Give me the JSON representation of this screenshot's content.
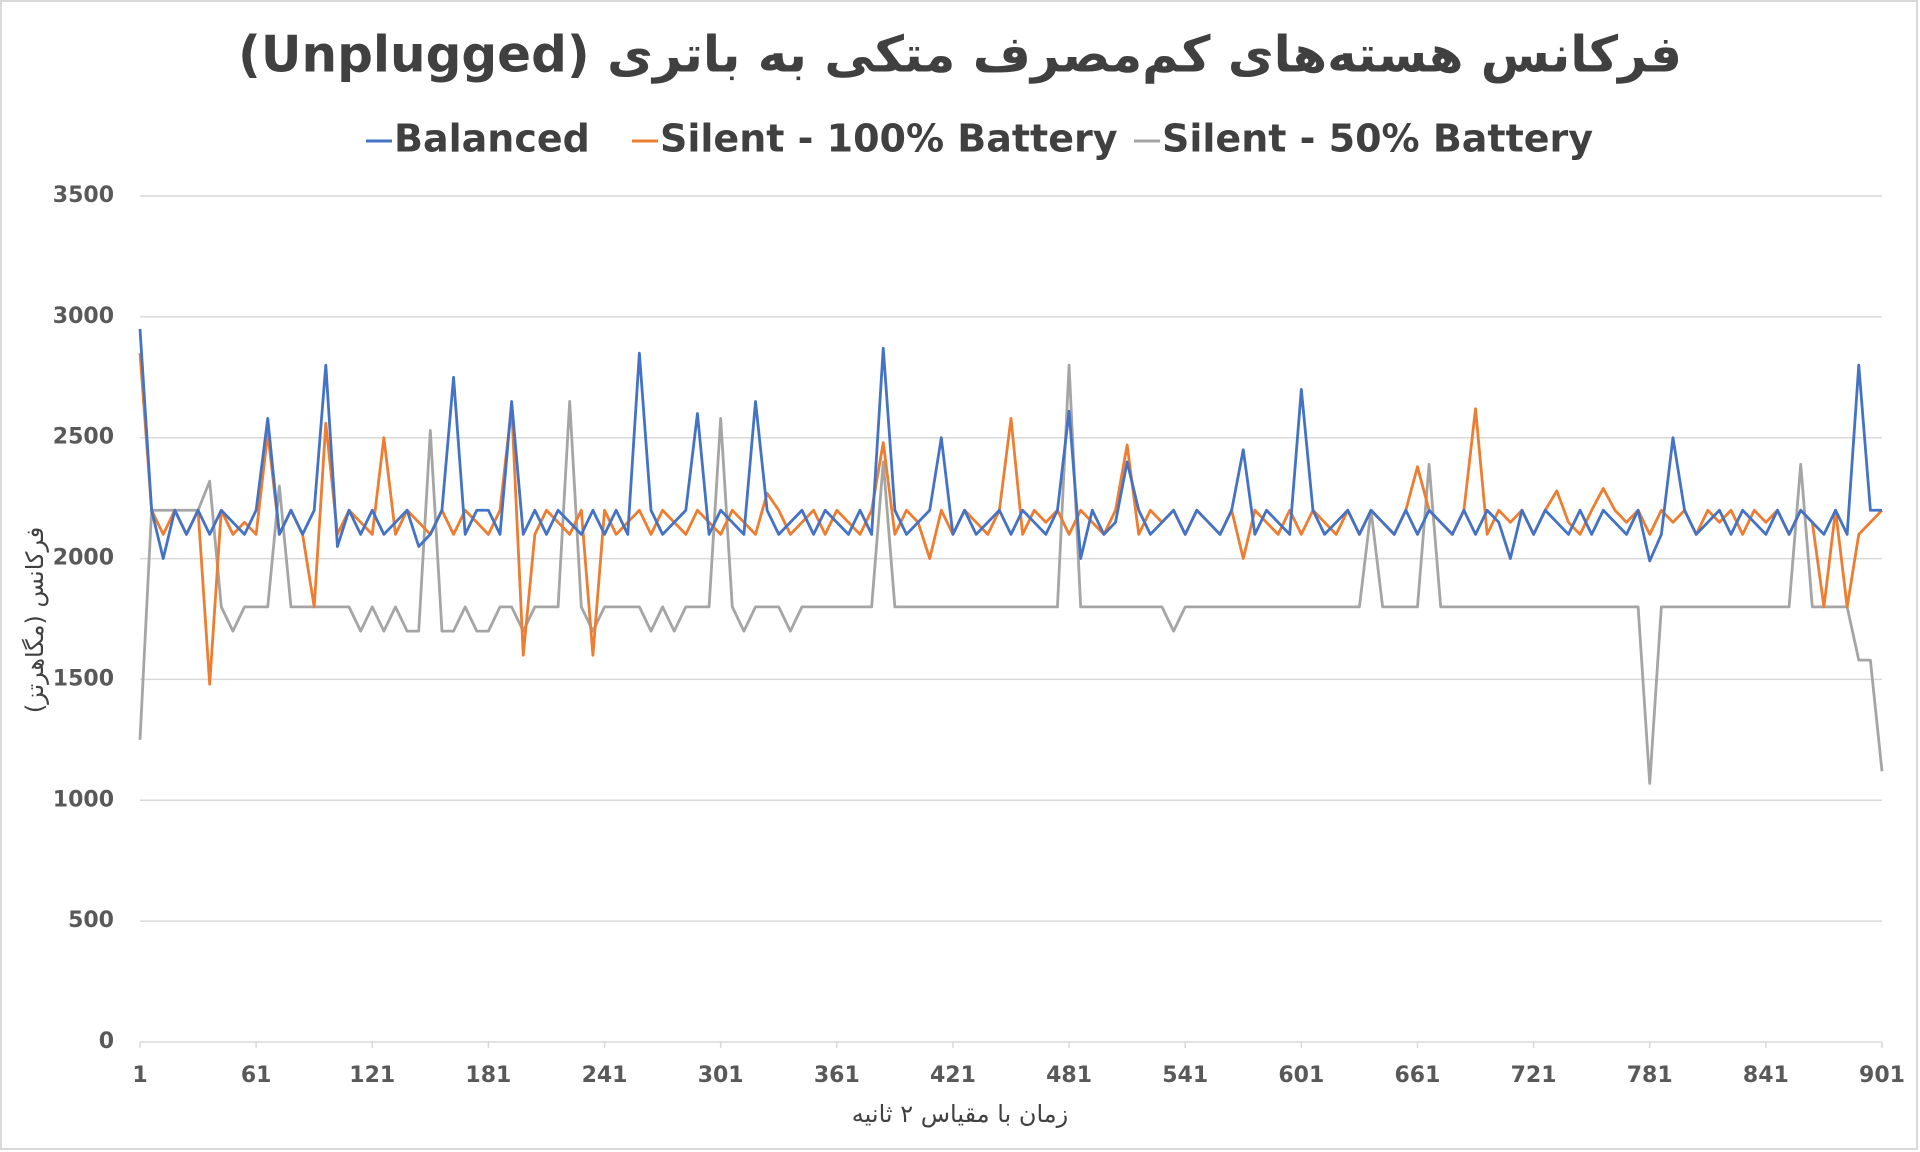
{
  "chart_data": {
    "type": "line",
    "title": "فرکانس هسته‌های کم‌مصرف متکی به باتری (Unplugged)",
    "x_label": "زمان با مقیاس ۲ ثانیه",
    "y_label": "فرکانس (مگاهرتز)",
    "x": [
      1,
      7,
      13,
      19,
      25,
      31,
      37,
      43,
      49,
      55,
      61,
      67,
      73,
      79,
      85,
      91,
      97,
      103,
      109,
      115,
      121,
      127,
      133,
      139,
      145,
      151,
      157,
      163,
      169,
      175,
      181,
      187,
      193,
      199,
      205,
      211,
      217,
      223,
      229,
      235,
      241,
      247,
      253,
      259,
      265,
      271,
      277,
      283,
      289,
      295,
      301,
      307,
      313,
      319,
      325,
      331,
      337,
      343,
      349,
      355,
      361,
      367,
      373,
      379,
      385,
      391,
      397,
      403,
      409,
      415,
      421,
      427,
      433,
      439,
      445,
      451,
      457,
      463,
      469,
      475,
      481,
      487,
      493,
      499,
      505,
      511,
      517,
      523,
      529,
      535,
      541,
      547,
      553,
      559,
      565,
      571,
      577,
      583,
      589,
      595,
      601,
      607,
      613,
      619,
      625,
      631,
      637,
      643,
      649,
      655,
      661,
      667,
      673,
      679,
      685,
      691,
      697,
      703,
      709,
      715,
      721,
      727,
      733,
      739,
      745,
      751,
      757,
      763,
      769,
      775,
      781,
      787,
      793,
      799,
      805,
      811,
      817,
      823,
      829,
      835,
      841,
      847,
      853,
      859,
      865,
      871,
      877,
      883,
      889,
      895,
      901
    ],
    "series": [
      {
        "name": "Balanced",
        "color": "#4472c4",
        "values": [
          2950,
          2200,
          2000,
          2200,
          2100,
          2200,
          2100,
          2200,
          2150,
          2100,
          2200,
          2580,
          2100,
          2200,
          2100,
          2200,
          2800,
          2050,
          2200,
          2100,
          2200,
          2100,
          2150,
          2200,
          2050,
          2100,
          2200,
          2750,
          2100,
          2200,
          2200,
          2100,
          2650,
          2100,
          2200,
          2100,
          2200,
          2150,
          2100,
          2200,
          2100,
          2200,
          2100,
          2850,
          2200,
          2100,
          2150,
          2200,
          2600,
          2100,
          2200,
          2150,
          2100,
          2650,
          2200,
          2100,
          2150,
          2200,
          2100,
          2200,
          2150,
          2100,
          2200,
          2100,
          2870,
          2200,
          2100,
          2150,
          2200,
          2500,
          2100,
          2200,
          2100,
          2150,
          2200,
          2100,
          2200,
          2150,
          2100,
          2200,
          2610,
          2000,
          2200,
          2100,
          2150,
          2400,
          2200,
          2100,
          2150,
          2200,
          2100,
          2200,
          2150,
          2100,
          2200,
          2450,
          2100,
          2200,
          2150,
          2100,
          2700,
          2200,
          2100,
          2150,
          2200,
          2100,
          2200,
          2150,
          2100,
          2200,
          2100,
          2200,
          2150,
          2100,
          2200,
          2100,
          2200,
          2150,
          2000,
          2200,
          2100,
          2200,
          2150,
          2100,
          2200,
          2100,
          2200,
          2150,
          2100,
          2200,
          1990,
          2100,
          2500,
          2200,
          2100,
          2150,
          2200,
          2100,
          2200,
          2150,
          2100,
          2200,
          2100,
          2200,
          2150,
          2100,
          2200,
          2100,
          2800,
          2200,
          2200
        ]
      },
      {
        "name": "Silent - 100% Battery",
        "color": "#ed7d31",
        "values": [
          2850,
          2200,
          2100,
          2200,
          2100,
          2200,
          1480,
          2200,
          2100,
          2150,
          2100,
          2520,
          2100,
          2200,
          2100,
          1800,
          2560,
          2100,
          2200,
          2150,
          2100,
          2500,
          2100,
          2200,
          2150,
          2100,
          2200,
          2100,
          2200,
          2150,
          2100,
          2200,
          2630,
          1600,
          2100,
          2200,
          2150,
          2100,
          2200,
          1600,
          2200,
          2100,
          2150,
          2200,
          2100,
          2200,
          2150,
          2100,
          2200,
          2150,
          2100,
          2200,
          2150,
          2100,
          2270,
          2200,
          2100,
          2150,
          2200,
          2100,
          2200,
          2150,
          2100,
          2200,
          2480,
          2100,
          2200,
          2150,
          2000,
          2200,
          2100,
          2200,
          2150,
          2100,
          2200,
          2580,
          2100,
          2200,
          2150,
          2200,
          2100,
          2200,
          2150,
          2100,
          2200,
          2470,
          2100,
          2200,
          2150,
          2200,
          2100,
          2200,
          2150,
          2100,
          2200,
          2000,
          2200,
          2150,
          2100,
          2200,
          2100,
          2200,
          2150,
          2100,
          2200,
          2100,
          2200,
          2150,
          2100,
          2200,
          2380,
          2200,
          2150,
          2100,
          2200,
          2620,
          2100,
          2200,
          2150,
          2200,
          2100,
          2200,
          2280,
          2150,
          2100,
          2200,
          2290,
          2200,
          2150,
          2200,
          2100,
          2200,
          2150,
          2200,
          2100,
          2200,
          2150,
          2200,
          2100,
          2200,
          2150,
          2200,
          2100,
          2200,
          2150,
          1800,
          2200,
          1800,
          2100,
          2150,
          2200
        ]
      },
      {
        "name": "Silent - 50% Battery",
        "color": "#a5a5a5",
        "values": [
          1250,
          2200,
          2200,
          2200,
          2200,
          2200,
          2320,
          1800,
          1700,
          1800,
          1800,
          1800,
          2300,
          1800,
          1800,
          1800,
          1800,
          1800,
          1800,
          1700,
          1800,
          1700,
          1800,
          1700,
          1700,
          2530,
          1700,
          1700,
          1800,
          1700,
          1700,
          1800,
          1800,
          1700,
          1800,
          1800,
          1800,
          2650,
          1800,
          1700,
          1800,
          1800,
          1800,
          1800,
          1700,
          1800,
          1700,
          1800,
          1800,
          1800,
          2580,
          1800,
          1700,
          1800,
          1800,
          1800,
          1700,
          1800,
          1800,
          1800,
          1800,
          1800,
          1800,
          1800,
          2400,
          1800,
          1800,
          1800,
          1800,
          1800,
          1800,
          1800,
          1800,
          1800,
          1800,
          1800,
          1800,
          1800,
          1800,
          1800,
          2800,
          1800,
          1800,
          1800,
          1800,
          1800,
          1800,
          1800,
          1800,
          1700,
          1800,
          1800,
          1800,
          1800,
          1800,
          1800,
          1800,
          1800,
          1800,
          1800,
          1800,
          1800,
          1800,
          1800,
          1800,
          1800,
          2200,
          1800,
          1800,
          1800,
          1800,
          2390,
          1800,
          1800,
          1800,
          1800,
          1800,
          1800,
          1800,
          1800,
          1800,
          1800,
          1800,
          1800,
          1800,
          1800,
          1800,
          1800,
          1800,
          1800,
          1070,
          1800,
          1800,
          1800,
          1800,
          1800,
          1800,
          1800,
          1800,
          1800,
          1800,
          1800,
          1800,
          2390,
          1800,
          1800,
          1800,
          1800,
          1580,
          1580,
          1120
        ]
      }
    ],
    "xlim": [
      1,
      901
    ],
    "xticks": [
      1,
      61,
      121,
      181,
      241,
      301,
      361,
      421,
      481,
      541,
      601,
      661,
      721,
      781,
      841,
      901
    ],
    "ylim": [
      0,
      3500
    ],
    "yticks": [
      0,
      500,
      1000,
      1500,
      2000,
      2500,
      3000,
      3500
    ],
    "grid": true,
    "legend_position": "top"
  }
}
